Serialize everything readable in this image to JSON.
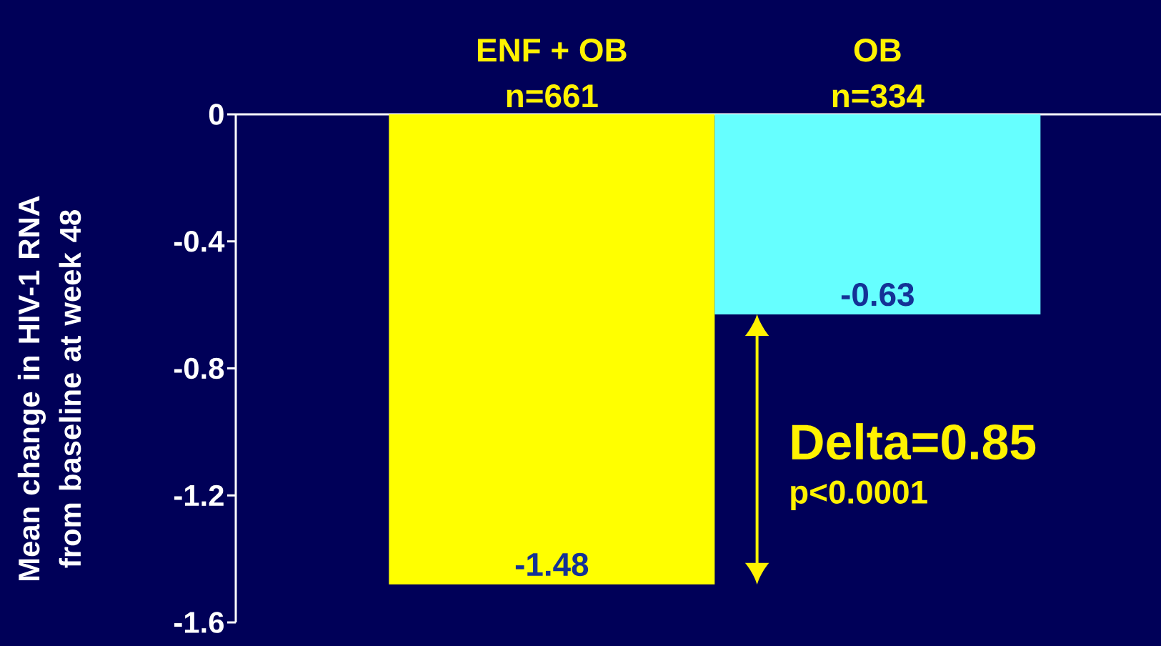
{
  "chart_data": {
    "type": "bar",
    "categories": [
      "ENF + OB",
      "OB"
    ],
    "values": [
      -1.48,
      -0.63
    ],
    "colors": [
      "#ffff00",
      "#66ffff"
    ],
    "value_labels": [
      "-1.48",
      "-0.63"
    ],
    "ylim": [
      -1.6,
      0
    ],
    "yticks": [
      0,
      -0.4,
      -0.8,
      -1.2,
      -1.6
    ],
    "ylabel": "Mean change in HIV-1 RNA from baseline at week 48",
    "annotations": [
      "Delta=0.85",
      "p<0.0001",
      "n=661",
      "n=334"
    ],
    "grid": false
  }
}
